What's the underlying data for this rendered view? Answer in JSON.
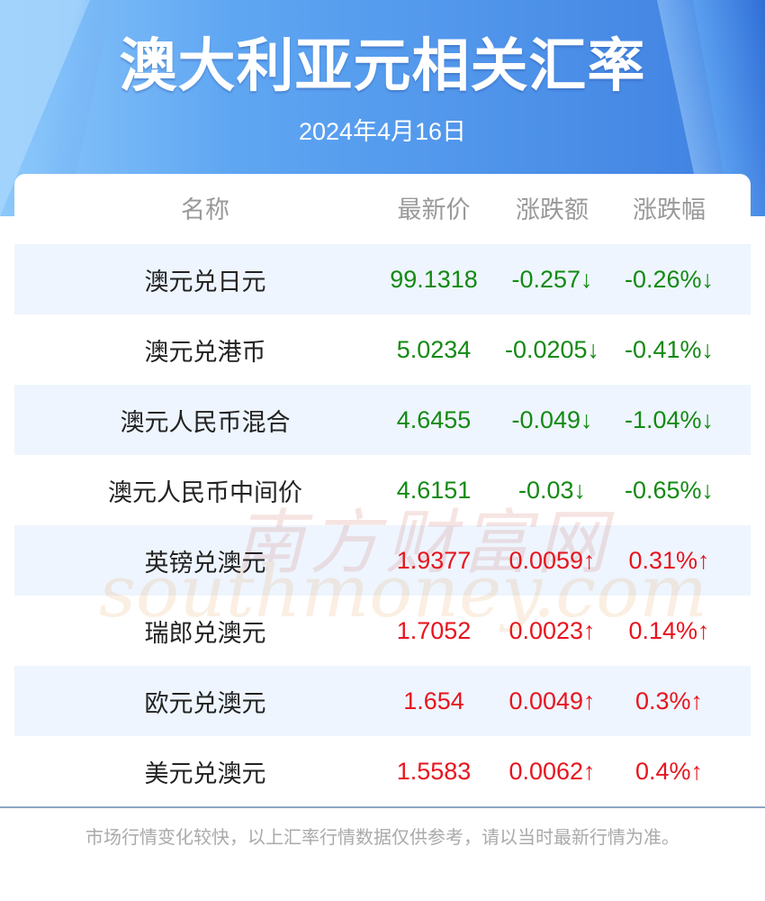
{
  "header": {
    "title": "澳大利亚元相关汇率",
    "date": "2024年4月16日"
  },
  "colors": {
    "down": "#138a13",
    "up": "#e8141e",
    "header_text": "#999999",
    "alt_row": "#eef5fe"
  },
  "table": {
    "columns": [
      "名称",
      "最新价",
      "涨跌额",
      "涨跌幅"
    ],
    "rows": [
      {
        "name": "澳元兑日元",
        "price": "99.1318",
        "change": "-0.257↓",
        "pct": "-0.26%↓",
        "dir": "down"
      },
      {
        "name": "澳元兑港币",
        "price": "5.0234",
        "change": "-0.0205↓",
        "pct": "-0.41%↓",
        "dir": "down"
      },
      {
        "name": "澳元人民币混合",
        "price": "4.6455",
        "change": "-0.049↓",
        "pct": "-1.04%↓",
        "dir": "down"
      },
      {
        "name": "澳元人民币中间价",
        "price": "4.6151",
        "change": "-0.03↓",
        "pct": "-0.65%↓",
        "dir": "down"
      },
      {
        "name": "英镑兑澳元",
        "price": "1.9377",
        "change": "0.0059↑",
        "pct": "0.31%↑",
        "dir": "up"
      },
      {
        "name": "瑞郎兑澳元",
        "price": "1.7052",
        "change": "0.0023↑",
        "pct": "0.14%↑",
        "dir": "up"
      },
      {
        "name": "欧元兑澳元",
        "price": "1.654",
        "change": "0.0049↑",
        "pct": "0.3%↑",
        "dir": "up"
      },
      {
        "name": "美元兑澳元",
        "price": "1.5583",
        "change": "0.0062↑",
        "pct": "0.4%↑",
        "dir": "up"
      }
    ]
  },
  "watermark": {
    "cn": "南方财富网",
    "en": "southmoney.com"
  },
  "footer": {
    "note": "市场行情变化较快，以上汇率行情数据仅供参考，请以当时最新行情为准。"
  }
}
